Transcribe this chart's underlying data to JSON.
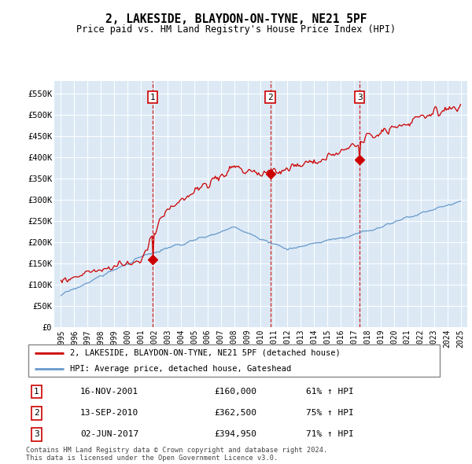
{
  "title": "2, LAKESIDE, BLAYDON-ON-TYNE, NE21 5PF",
  "subtitle": "Price paid vs. HM Land Registry's House Price Index (HPI)",
  "fig_bg_color": "#ffffff",
  "plot_bg_color": "#dce9f5",
  "red_line_label": "2, LAKESIDE, BLAYDON-ON-TYNE, NE21 5PF (detached house)",
  "blue_line_label": "HPI: Average price, detached house, Gateshead",
  "footer": "Contains HM Land Registry data © Crown copyright and database right 2024.\nThis data is licensed under the Open Government Licence v3.0.",
  "trans_years": [
    2001.88,
    2010.71,
    2017.42
  ],
  "trans_prices": [
    160000,
    362500,
    394950
  ],
  "trans_dates": [
    "16-NOV-2001",
    "13-SEP-2010",
    "02-JUN-2017"
  ],
  "trans_prices_str": [
    "£160,000",
    "£362,500",
    "£394,950"
  ],
  "trans_pcts": [
    "61% ↑ HPI",
    "75% ↑ HPI",
    "71% ↑ HPI"
  ],
  "ylim": [
    0,
    580000
  ],
  "yticks": [
    0,
    50000,
    100000,
    150000,
    200000,
    250000,
    300000,
    350000,
    400000,
    450000,
    500000,
    550000
  ],
  "ytick_labels": [
    "£0",
    "£50K",
    "£100K",
    "£150K",
    "£200K",
    "£250K",
    "£300K",
    "£350K",
    "£400K",
    "£450K",
    "£500K",
    "£550K"
  ],
  "xlim_start": 1994.5,
  "xlim_end": 2025.5,
  "xticks": [
    1995,
    1996,
    1997,
    1998,
    1999,
    2000,
    2001,
    2002,
    2003,
    2004,
    2005,
    2006,
    2007,
    2008,
    2009,
    2010,
    2011,
    2012,
    2013,
    2014,
    2015,
    2016,
    2017,
    2018,
    2019,
    2020,
    2021,
    2022,
    2023,
    2024,
    2025
  ],
  "red_color": "#cc0000",
  "blue_color": "#6699cc",
  "vline_color": "#cc0000",
  "grid_color": "#ffffff",
  "marker_size": 7
}
